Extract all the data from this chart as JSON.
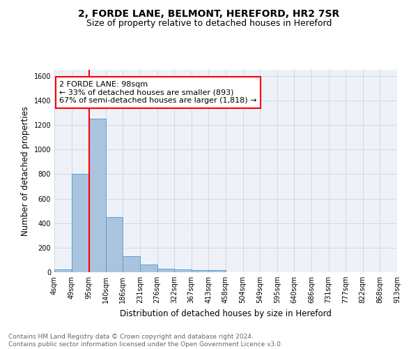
{
  "title1": "2, FORDE LANE, BELMONT, HEREFORD, HR2 7SR",
  "title2": "Size of property relative to detached houses in Hereford",
  "xlabel": "Distribution of detached houses by size in Hereford",
  "ylabel": "Number of detached properties",
  "footnote": "Contains HM Land Registry data © Crown copyright and database right 2024.\nContains public sector information licensed under the Open Government Licence v3.0.",
  "bin_labels": [
    "4sqm",
    "49sqm",
    "95sqm",
    "140sqm",
    "186sqm",
    "231sqm",
    "276sqm",
    "322sqm",
    "367sqm",
    "413sqm",
    "458sqm",
    "504sqm",
    "549sqm",
    "595sqm",
    "640sqm",
    "686sqm",
    "731sqm",
    "777sqm",
    "822sqm",
    "868sqm",
    "913sqm"
  ],
  "bar_heights": [
    25,
    800,
    1250,
    450,
    130,
    65,
    28,
    20,
    15,
    18,
    0,
    0,
    0,
    0,
    0,
    0,
    0,
    0,
    0,
    0
  ],
  "bar_color": "#aac4e0",
  "bar_edge_color": "#5f9ec9",
  "vline_x_index": 2,
  "vline_color": "red",
  "annotation_text": "2 FORDE LANE: 98sqm\n← 33% of detached houses are smaller (893)\n67% of semi-detached houses are larger (1,818) →",
  "annotation_box_color": "white",
  "annotation_box_edge": "red",
  "ylim": [
    0,
    1650
  ],
  "yticks": [
    0,
    200,
    400,
    600,
    800,
    1000,
    1200,
    1400,
    1600
  ],
  "grid_color": "#d0d8e8",
  "bg_color": "#eef2f8",
  "title1_fontsize": 10,
  "title2_fontsize": 9,
  "xlabel_fontsize": 8.5,
  "ylabel_fontsize": 8.5,
  "tick_fontsize": 7,
  "annotation_fontsize": 8,
  "footnote_fontsize": 6.5
}
